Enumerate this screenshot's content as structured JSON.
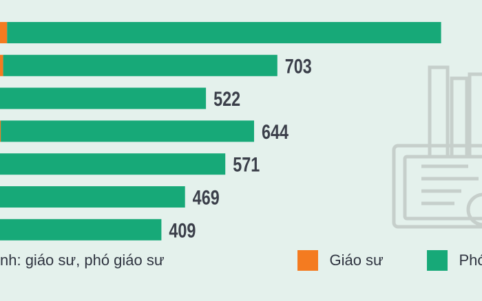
{
  "chart_data": {
    "type": "bar",
    "orientation": "horizontal",
    "stacked": true,
    "categories": [
      "",
      "",
      "",
      "",
      "",
      "",
      ""
    ],
    "series": [
      {
        "name": "Giáo sư",
        "color": "#f47b20",
        "values": [
          18,
          8,
          0,
          2,
          0,
          0,
          0
        ]
      },
      {
        "name": "Phó",
        "color": "#17a978",
        "values": [
          1100,
          695,
          522,
          642,
          571,
          469,
          409
        ]
      }
    ],
    "data_labels": [
      "",
      "703",
      "522",
      "644",
      "571",
      "469",
      "409"
    ],
    "xlim": [
      0,
      1200
    ],
    "grid": false,
    "legend_position": "bottom"
  },
  "legend": {
    "caption": "nh: giáo sư, phó giáo sư",
    "items": [
      {
        "label": "Giáo sư",
        "color": "#f47b20"
      },
      {
        "label": "Phó",
        "color": "#17a978"
      }
    ]
  },
  "icons": {
    "decoration": "certificate-books-icon"
  }
}
